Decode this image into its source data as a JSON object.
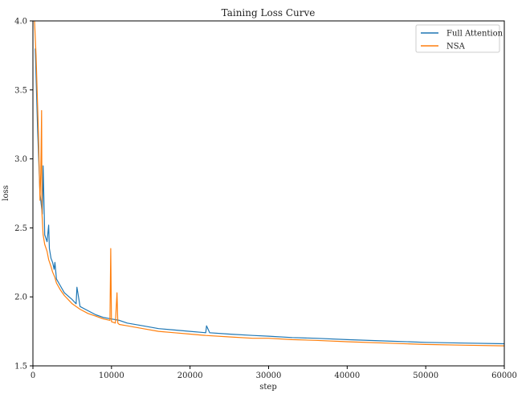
{
  "chart_data": {
    "type": "line",
    "title": "Taining Loss Curve",
    "xlabel": "step",
    "ylabel": "loss",
    "xlim": [
      0,
      60000
    ],
    "ylim": [
      1.5,
      4.0
    ],
    "x_ticks": [
      0,
      10000,
      20000,
      30000,
      40000,
      50000,
      60000
    ],
    "y_ticks": [
      1.5,
      2.0,
      2.5,
      3.0,
      3.5,
      4.0
    ],
    "x_tick_labels": [
      "0",
      "10000",
      "20000",
      "30000",
      "40000",
      "50000",
      "60000"
    ],
    "y_tick_labels": [
      "1.5",
      "2.0",
      "2.5",
      "3.0",
      "3.5",
      "4.0"
    ],
    "grid": false,
    "legend_position": "top-right",
    "series": [
      {
        "name": "Full Attention",
        "color": "#1f77b4",
        "x": [
          300,
          600,
          900,
          1200,
          1300,
          1500,
          1800,
          2000,
          2100,
          2300,
          2500,
          2700,
          2800,
          3000,
          3500,
          4000,
          5000,
          5500,
          5600,
          6000,
          7000,
          8000,
          9000,
          10000,
          11000,
          12000,
          14000,
          16000,
          18000,
          20000,
          22000,
          22100,
          22500,
          25000,
          28000,
          30000,
          33000,
          36000,
          40000,
          45000,
          50000,
          55000,
          60000
        ],
        "y": [
          3.8,
          3.2,
          2.75,
          2.6,
          2.95,
          2.45,
          2.4,
          2.52,
          2.35,
          2.28,
          2.25,
          2.2,
          2.25,
          2.13,
          2.08,
          2.03,
          1.98,
          1.95,
          2.07,
          1.93,
          1.9,
          1.87,
          1.85,
          1.84,
          1.83,
          1.81,
          1.79,
          1.77,
          1.76,
          1.75,
          1.74,
          1.79,
          1.74,
          1.73,
          1.72,
          1.715,
          1.705,
          1.7,
          1.69,
          1.68,
          1.67,
          1.665,
          1.66
        ]
      },
      {
        "name": "NSA",
        "color": "#ff7f0e",
        "x": [
          200,
          400,
          700,
          900,
          1000,
          1100,
          1150,
          1300,
          1500,
          1800,
          2000,
          2300,
          2500,
          2800,
          3000,
          3500,
          4000,
          5000,
          6000,
          7000,
          8000,
          9000,
          9800,
          9900,
          10000,
          10500,
          10700,
          10800,
          11000,
          12000,
          14000,
          16000,
          18000,
          20000,
          22000,
          25000,
          28000,
          30000,
          33000,
          36000,
          40000,
          45000,
          50000,
          55000,
          60000
        ],
        "y": [
          4.0,
          3.75,
          3.2,
          2.7,
          2.9,
          3.35,
          2.6,
          2.45,
          2.38,
          2.33,
          2.27,
          2.22,
          2.18,
          2.14,
          2.1,
          2.05,
          2.01,
          1.95,
          1.91,
          1.88,
          1.86,
          1.84,
          1.83,
          2.35,
          1.82,
          1.81,
          2.03,
          1.81,
          1.8,
          1.79,
          1.77,
          1.75,
          1.74,
          1.73,
          1.72,
          1.71,
          1.7,
          1.7,
          1.69,
          1.685,
          1.675,
          1.665,
          1.655,
          1.65,
          1.645
        ]
      }
    ]
  }
}
